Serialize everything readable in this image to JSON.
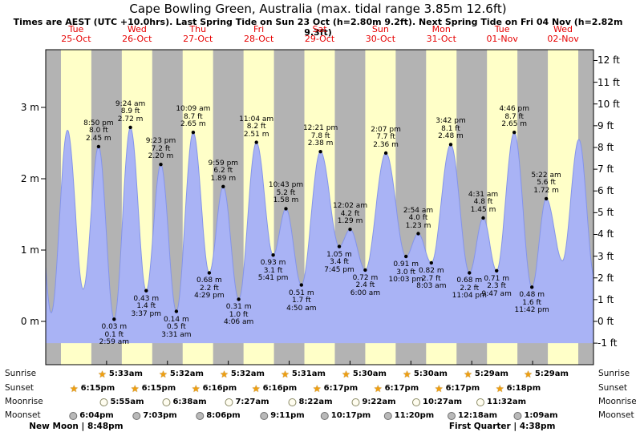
{
  "title": "Cape Bowling Green, Australia (max. tidal range 3.85m 12.6ft)",
  "subtitle": "Times are AEST (UTC +10.0hrs). Last Spring Tide on Sun 23 Oct (h=2.80m 9.2ft). Next Spring Tide on Fri 04 Nov (h=2.82m 9.3ft)",
  "colors": {
    "day_band": "#ffffc8",
    "night_band": "#b3b3b3",
    "tide_fill": "#a9b3f5",
    "tide_stroke": "#8494ea",
    "date_label": "#e60000",
    "sun_icon": "#ef9f10",
    "moonrise_fill": "#fffdf0",
    "moonrise_border": "#8a8a66",
    "moonset_fill": "#b9b9b9",
    "moonset_border": "#6f6f6f",
    "plot_border": "#000000",
    "dot": "#000000"
  },
  "chart_data": {
    "type": "area",
    "title": "Cape Bowling Green, Australia tide curve",
    "x_axis": "time (Tue 25-Oct 00:00 to Wed 02-Nov 24:00, AEST)",
    "y_left": {
      "unit": "m",
      "ticks": [
        0,
        1,
        2,
        3
      ]
    },
    "y_right": {
      "unit": "ft",
      "ticks": [
        -1,
        0,
        1,
        2,
        3,
        4,
        5,
        6,
        7,
        8,
        9,
        10,
        11,
        12
      ]
    },
    "days": [
      {
        "weekday": "Tue",
        "date": "25-Oct"
      },
      {
        "weekday": "Wed",
        "date": "26-Oct"
      },
      {
        "weekday": "Thu",
        "date": "27-Oct"
      },
      {
        "weekday": "Fri",
        "date": "28-Oct"
      },
      {
        "weekday": "Sat",
        "date": "29-Oct"
      },
      {
        "weekday": "Sun",
        "date": "30-Oct"
      },
      {
        "weekday": "Mon",
        "date": "31-Oct"
      },
      {
        "weekday": "Tue",
        "date": "01-Nov"
      },
      {
        "weekday": "Wed",
        "date": "02-Nov"
      }
    ],
    "extremes": [
      {
        "day": 0,
        "t24": "20:50",
        "type": "high",
        "m": 2.45,
        "ft": 8.0,
        "time": "8:50 pm"
      },
      {
        "day": 1,
        "t24": "02:59",
        "type": "low",
        "m": 0.03,
        "ft": 0.1,
        "time": "2:59 am"
      },
      {
        "day": 1,
        "t24": "09:24",
        "type": "high",
        "m": 2.72,
        "ft": 8.9,
        "time": "9:24 am"
      },
      {
        "day": 1,
        "t24": "15:37",
        "type": "low",
        "m": 0.43,
        "ft": 1.4,
        "time": "3:37 pm"
      },
      {
        "day": 1,
        "t24": "21:23",
        "type": "high",
        "m": 2.2,
        "ft": 7.2,
        "time": "9:23 pm"
      },
      {
        "day": 2,
        "t24": "03:31",
        "type": "low",
        "m": 0.14,
        "ft": 0.5,
        "time": "3:31 am"
      },
      {
        "day": 2,
        "t24": "10:09",
        "type": "high",
        "m": 2.65,
        "ft": 8.7,
        "time": "10:09 am"
      },
      {
        "day": 2,
        "t24": "16:29",
        "type": "low",
        "m": 0.68,
        "ft": 2.2,
        "time": "4:29 pm"
      },
      {
        "day": 2,
        "t24": "21:59",
        "type": "high",
        "m": 1.89,
        "ft": 6.2,
        "time": "9:59 pm"
      },
      {
        "day": 3,
        "t24": "04:06",
        "type": "low",
        "m": 0.31,
        "ft": 1.0,
        "time": "4:06 am"
      },
      {
        "day": 3,
        "t24": "11:04",
        "type": "high",
        "m": 2.51,
        "ft": 8.2,
        "time": "11:04 am"
      },
      {
        "day": 3,
        "t24": "17:41",
        "type": "low",
        "m": 0.93,
        "ft": 3.1,
        "time": "5:41 pm"
      },
      {
        "day": 3,
        "t24": "22:43",
        "type": "high",
        "m": 1.58,
        "ft": 5.2,
        "time": "10:43 pm"
      },
      {
        "day": 4,
        "t24": "04:50",
        "type": "low",
        "m": 0.51,
        "ft": 1.7,
        "time": "4:50 am"
      },
      {
        "day": 4,
        "t24": "12:21",
        "type": "high",
        "m": 2.38,
        "ft": 7.8,
        "time": "12:21 pm"
      },
      {
        "day": 4,
        "t24": "19:45",
        "type": "low",
        "m": 1.05,
        "ft": 3.4,
        "time": "7:45 pm"
      },
      {
        "day": 5,
        "t24": "00:02",
        "type": "high",
        "m": 1.29,
        "ft": 4.2,
        "time": "12:02 am"
      },
      {
        "day": 5,
        "t24": "06:00",
        "type": "low",
        "m": 0.72,
        "ft": 2.4,
        "time": "6:00 am"
      },
      {
        "day": 5,
        "t24": "14:07",
        "type": "high",
        "m": 2.36,
        "ft": 7.7,
        "time": "2:07 pm"
      },
      {
        "day": 5,
        "t24": "22:03",
        "type": "low",
        "m": 0.91,
        "ft": 3.0,
        "time": "10:03 pm"
      },
      {
        "day": 6,
        "t24": "02:54",
        "type": "high",
        "m": 1.23,
        "ft": 4.0,
        "time": "2:54 am"
      },
      {
        "day": 6,
        "t24": "08:03",
        "type": "low",
        "m": 0.82,
        "ft": 2.7,
        "time": "8:03 am"
      },
      {
        "day": 6,
        "t24": "15:42",
        "type": "high",
        "m": 2.48,
        "ft": 8.1,
        "time": "3:42 pm"
      },
      {
        "day": 6,
        "t24": "23:04",
        "type": "low",
        "m": 0.68,
        "ft": 2.2,
        "time": "11:04 pm"
      },
      {
        "day": 7,
        "t24": "04:31",
        "type": "high",
        "m": 1.45,
        "ft": 4.8,
        "time": "4:31 am"
      },
      {
        "day": 7,
        "t24": "09:47",
        "type": "low",
        "m": 0.71,
        "ft": 2.3,
        "time": "9:47 am"
      },
      {
        "day": 7,
        "t24": "16:46",
        "type": "high",
        "m": 2.65,
        "ft": 8.7,
        "time": "4:46 pm"
      },
      {
        "day": 7,
        "t24": "23:42",
        "type": "low",
        "m": 0.48,
        "ft": 1.6,
        "time": "11:42 pm"
      },
      {
        "day": 8,
        "t24": "05:22",
        "type": "high",
        "m": 1.72,
        "ft": 5.6,
        "time": "5:22 am"
      }
    ],
    "edge_extremes": [
      {
        "day": -1,
        "t24": "20:10",
        "m": 2.35,
        "estimated": true
      },
      {
        "day": 0,
        "t24": "02:10",
        "m": 0.12,
        "estimated": true
      },
      {
        "day": 0,
        "t24": "08:35",
        "m": 2.68,
        "estimated": true
      },
      {
        "day": 0,
        "t24": "14:45",
        "m": 0.45,
        "estimated": true
      },
      {
        "day": 8,
        "t24": "11:45",
        "m": 0.85,
        "estimated": true
      },
      {
        "day": 8,
        "t24": "18:15",
        "m": 2.55,
        "estimated": true
      },
      {
        "day": 9,
        "t24": "00:30",
        "m": 0.6,
        "estimated": true
      }
    ]
  },
  "astronomy": {
    "row_labels": {
      "sunrise": "Sunrise",
      "sunset": "Sunset",
      "moonrise": "Moonrise",
      "moonset": "Moonset"
    },
    "sunrise": [
      {
        "day": 1,
        "t24": "05:33",
        "time": "5:33am"
      },
      {
        "day": 2,
        "t24": "05:32",
        "time": "5:32am"
      },
      {
        "day": 3,
        "t24": "05:32",
        "time": "5:32am"
      },
      {
        "day": 4,
        "t24": "05:31",
        "time": "5:31am"
      },
      {
        "day": 5,
        "t24": "05:30",
        "time": "5:30am"
      },
      {
        "day": 6,
        "t24": "05:30",
        "time": "5:30am"
      },
      {
        "day": 7,
        "t24": "05:29",
        "time": "5:29am"
      },
      {
        "day": 8,
        "t24": "05:29",
        "time": "5:29am"
      }
    ],
    "sunset": [
      {
        "day": 0,
        "t24": "18:15",
        "time": "6:15pm"
      },
      {
        "day": 1,
        "t24": "18:15",
        "time": "6:15pm"
      },
      {
        "day": 2,
        "t24": "18:16",
        "time": "6:16pm"
      },
      {
        "day": 3,
        "t24": "18:16",
        "time": "6:16pm"
      },
      {
        "day": 4,
        "t24": "18:17",
        "time": "6:17pm"
      },
      {
        "day": 5,
        "t24": "18:17",
        "time": "6:17pm"
      },
      {
        "day": 6,
        "t24": "18:17",
        "time": "6:17pm"
      },
      {
        "day": 7,
        "t24": "18:18",
        "time": "6:18pm"
      }
    ],
    "moonrise": [
      {
        "day": 1,
        "t24": "05:55",
        "time": "5:55am"
      },
      {
        "day": 2,
        "t24": "06:38",
        "time": "6:38am"
      },
      {
        "day": 3,
        "t24": "07:27",
        "time": "7:27am"
      },
      {
        "day": 4,
        "t24": "08:22",
        "time": "8:22am"
      },
      {
        "day": 5,
        "t24": "09:22",
        "time": "9:22am"
      },
      {
        "day": 6,
        "t24": "10:27",
        "time": "10:27am"
      },
      {
        "day": 7,
        "t24": "11:32",
        "time": "11:32am"
      }
    ],
    "moonset": [
      {
        "day": 0,
        "t24": "18:04",
        "time": "6:04pm"
      },
      {
        "day": 1,
        "t24": "19:03",
        "time": "7:03pm"
      },
      {
        "day": 2,
        "t24": "20:06",
        "time": "8:06pm"
      },
      {
        "day": 3,
        "t24": "21:11",
        "time": "9:11pm"
      },
      {
        "day": 4,
        "t24": "22:17",
        "time": "10:17pm"
      },
      {
        "day": 5,
        "t24": "23:20",
        "time": "11:20pm"
      },
      {
        "day": 7,
        "t24": "00:18",
        "time": "12:18am"
      },
      {
        "day": 8,
        "t24": "01:09",
        "time": "1:09am"
      }
    ],
    "events": [
      {
        "name": "New Moon",
        "time": "8:48pm",
        "day": 0
      },
      {
        "name": "First Quarter",
        "time": "4:38pm",
        "day": 7
      }
    ]
  }
}
